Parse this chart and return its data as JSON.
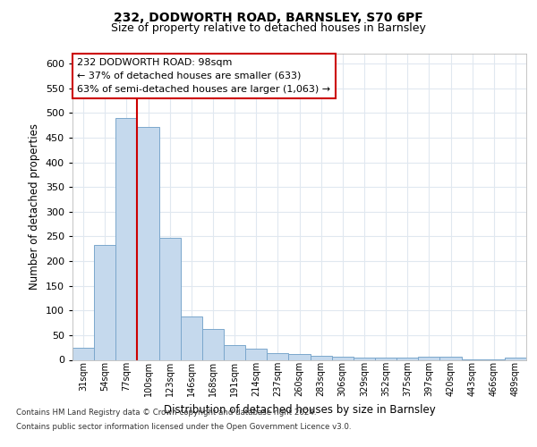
{
  "title1": "232, DODWORTH ROAD, BARNSLEY, S70 6PF",
  "title2": "Size of property relative to detached houses in Barnsley",
  "xlabel": "Distribution of detached houses by size in Barnsley",
  "ylabel": "Number of detached properties",
  "categories": [
    "31sqm",
    "54sqm",
    "77sqm",
    "100sqm",
    "123sqm",
    "146sqm",
    "168sqm",
    "191sqm",
    "214sqm",
    "237sqm",
    "260sqm",
    "283sqm",
    "306sqm",
    "329sqm",
    "352sqm",
    "375sqm",
    "397sqm",
    "420sqm",
    "443sqm",
    "466sqm",
    "489sqm"
  ],
  "values": [
    25,
    232,
    490,
    472,
    248,
    88,
    63,
    30,
    22,
    13,
    11,
    9,
    6,
    4,
    4,
    4,
    6,
    6,
    1,
    1,
    5
  ],
  "bar_color": "#c5d9ed",
  "bar_edge_color": "#7ba7cc",
  "vline_color": "#cc0000",
  "annotation_text": "232 DODWORTH ROAD: 98sqm\n← 37% of detached houses are smaller (633)\n63% of semi-detached houses are larger (1,063) →",
  "annotation_box_color": "#ffffff",
  "annotation_box_edge": "#cc0000",
  "ylim": [
    0,
    620
  ],
  "yticks": [
    0,
    50,
    100,
    150,
    200,
    250,
    300,
    350,
    400,
    450,
    500,
    550,
    600
  ],
  "footer1": "Contains HM Land Registry data © Crown copyright and database right 2024.",
  "footer2": "Contains public sector information licensed under the Open Government Licence v3.0.",
  "bg_color": "#ffffff",
  "plot_bg_color": "#ffffff",
  "grid_color": "#e0e8f0"
}
